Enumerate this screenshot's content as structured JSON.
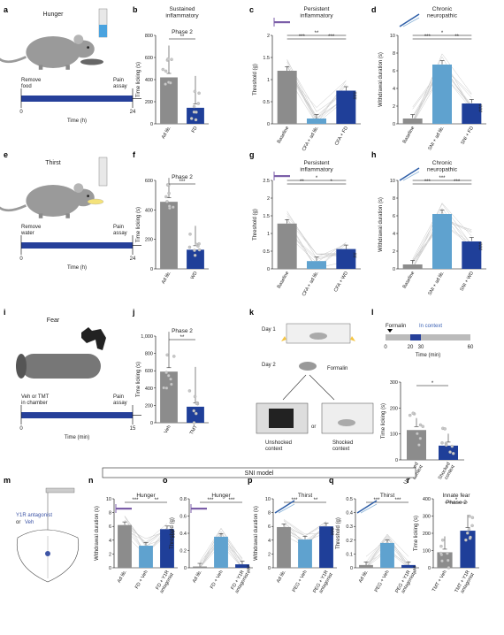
{
  "colors": {
    "grey": "#8c8c8c",
    "light_blue": "#5fa2cf",
    "dark_blue": "#1f3f99",
    "mid_blue": "#3b61b4",
    "line_grey": "#c8c8c8",
    "timeline": "#26409a",
    "veh_label": "#3e55a6"
  },
  "panel_letters": [
    "a",
    "b",
    "c",
    "d",
    "e",
    "f",
    "g",
    "h",
    "i",
    "j",
    "k",
    "l",
    "m",
    "n",
    "o",
    "p",
    "q",
    "r"
  ],
  "schematics": {
    "a": {
      "title": "Hunger",
      "left": "Remove\nfood",
      "right": "Pain\nassay",
      "t0": "0",
      "t1": "24",
      "axis": "Time (h)"
    },
    "e": {
      "title": "Thirst",
      "left": "Remove\nwater",
      "right": "Pain\nassay",
      "t0": "0",
      "t1": "24",
      "axis": "Time (h)"
    },
    "i": {
      "title": "Fear",
      "left": "Veh or TMT\nin chamber",
      "right": "Pain\nassay",
      "t0": "0",
      "t1": "15",
      "axis": "Time (min)"
    },
    "k": {
      "day1": "Day 1",
      "day2": "Day 2",
      "formalin": "Formalin",
      "unshocked": "Unshocked\ncontext",
      "or": "or",
      "shocked": "Shocked\ncontext"
    },
    "l_timeline": {
      "formalin": "Formalin",
      "in_context": "In context",
      "ticks": [
        "0",
        "20",
        "30",
        "60"
      ],
      "axis": "Time (min)"
    },
    "m": {
      "label1": "Y1R antagonist",
      "label2": "or",
      "label3": "Veh"
    }
  },
  "sni_model_label": "SNI model",
  "chart_data": [
    {
      "panel": "b",
      "type": "bar",
      "title": "Sustained\ninflammatory",
      "subtitle": "Phase 2",
      "categories": [
        "Ad lib.",
        "FD"
      ],
      "values": [
        420,
        145
      ],
      "ylabel": "Time licking (s)",
      "ylim": [
        0,
        800
      ],
      "yticks": [
        0,
        200,
        400,
        600,
        800
      ],
      "sig": [
        {
          "a": 0,
          "b": 1,
          "label": "**"
        }
      ],
      "colors": [
        "grey",
        "dark_blue"
      ]
    },
    {
      "panel": "c",
      "type": "bar",
      "title": "Persistent\ninflammatory",
      "categories": [
        "Baseline",
        "CFA + ad lib.",
        "CFA + FD"
      ],
      "values": [
        1.2,
        0.12,
        0.75
      ],
      "ylabel": "Threshold (g)",
      "ylim": [
        0,
        2.0
      ],
      "yticks": [
        0,
        0.5,
        1.0,
        1.5,
        2.0
      ],
      "sig": [
        {
          "a": 0,
          "b": 1,
          "label": "***"
        },
        {
          "a": 1,
          "b": 2,
          "label": "***"
        },
        {
          "a": 0,
          "b": 2,
          "label": "**"
        }
      ],
      "end_label": "###",
      "colors": [
        "grey",
        "light_blue",
        "dark_blue"
      ]
    },
    {
      "panel": "d",
      "type": "bar",
      "title": "Chronic\nneuropathic",
      "categories": [
        "Baseline",
        "SNI + ad lib.",
        "SNI + FD"
      ],
      "values": [
        0.6,
        6.7,
        2.3
      ],
      "ylabel": "Withdrawal duration (s)",
      "ylim": [
        0,
        10
      ],
      "yticks": [
        0,
        2,
        4,
        6,
        8,
        10
      ],
      "sig": [
        {
          "a": 0,
          "b": 1,
          "label": "***"
        },
        {
          "a": 1,
          "b": 2,
          "label": "**"
        },
        {
          "a": 0,
          "b": 2,
          "label": "*"
        }
      ],
      "end_label": "###",
      "colors": [
        "grey",
        "light_blue",
        "dark_blue"
      ]
    },
    {
      "panel": "f",
      "type": "bar",
      "subtitle": "Phase 2",
      "categories": [
        "Ad lib.",
        "WD"
      ],
      "values": [
        455,
        130
      ],
      "ylabel": "Time licking (s)",
      "ylim": [
        0,
        600
      ],
      "yticks": [
        0,
        200,
        400,
        600
      ],
      "sig": [
        {
          "a": 0,
          "b": 1,
          "label": "***"
        }
      ],
      "colors": [
        "grey",
        "dark_blue"
      ]
    },
    {
      "panel": "g",
      "type": "bar",
      "title": "Persistent\ninflammatory",
      "categories": [
        "Baseline",
        "CFA + ad lib.",
        "CFA + WD"
      ],
      "values": [
        1.28,
        0.22,
        0.56
      ],
      "ylabel": "Threshold (g)",
      "ylim": [
        0,
        2.5
      ],
      "yticks": [
        0,
        0.5,
        1.0,
        1.5,
        2.0,
        2.5
      ],
      "sig": [
        {
          "a": 0,
          "b": 1,
          "label": "**"
        },
        {
          "a": 1,
          "b": 2,
          "label": "*"
        },
        {
          "a": 0,
          "b": 2,
          "label": "*"
        }
      ],
      "end_label": "##",
      "colors": [
        "grey",
        "light_blue",
        "dark_blue"
      ]
    },
    {
      "panel": "h",
      "type": "bar",
      "title": "Chronic\nneuropathic",
      "categories": [
        "Baseline",
        "SNI + ad lib.",
        "SNI + WD"
      ],
      "values": [
        0.5,
        6.2,
        3.1
      ],
      "ylabel": "Withdrawal duration (s)",
      "ylim": [
        0,
        10
      ],
      "yticks": [
        0,
        2,
        4,
        6,
        8,
        10
      ],
      "sig": [
        {
          "a": 0,
          "b": 1,
          "label": "***"
        },
        {
          "a": 1,
          "b": 2,
          "label": "***"
        },
        {
          "a": 0,
          "b": 2,
          "label": "***"
        }
      ],
      "end_label": "###",
      "colors": [
        "grey",
        "light_blue",
        "dark_blue"
      ]
    },
    {
      "panel": "j",
      "type": "bar",
      "subtitle": "Phase 2",
      "categories": [
        "Veh",
        "TMT"
      ],
      "values": [
        590,
        185
      ],
      "ylabel": "Time licking (s)",
      "ylim": [
        0,
        1000
      ],
      "yticks": [
        0,
        200,
        400,
        600,
        800,
        1000
      ],
      "ytick_labels": [
        "0",
        "200",
        "400",
        "600",
        "800",
        "1,000"
      ],
      "sig": [
        {
          "a": 0,
          "b": 1,
          "label": "**"
        }
      ],
      "colors": [
        "grey",
        "dark_blue"
      ]
    },
    {
      "panel": "l",
      "type": "bar",
      "categories": [
        "Unshocked\ncontext",
        "Shocked\ncontext"
      ],
      "values": [
        115,
        55
      ],
      "ylabel": "Time licking (s)",
      "ylim": [
        0,
        300
      ],
      "yticks": [
        0,
        100,
        200,
        300
      ],
      "sig": [
        {
          "a": 0,
          "b": 1,
          "label": "*"
        }
      ],
      "colors": [
        "grey",
        "dark_blue"
      ]
    },
    {
      "panel": "n",
      "type": "bar",
      "title": "Hunger",
      "categories": [
        "Ad lib.",
        "FD + Veh",
        "FD + Y1R\nantagonist"
      ],
      "values": [
        6.2,
        3.2,
        5.6
      ],
      "ylabel": "Withdrawal duration (s)",
      "ylim": [
        0,
        10
      ],
      "yticks": [
        0,
        2,
        4,
        6,
        8,
        10
      ],
      "sig": [
        {
          "a": 0,
          "b": 1,
          "label": "***"
        },
        {
          "a": 1,
          "b": 2,
          "label": "**"
        }
      ],
      "end_label": "###",
      "colors": [
        "grey",
        "light_blue",
        "dark_blue"
      ]
    },
    {
      "panel": "o",
      "type": "bar",
      "title": "Hunger",
      "categories": [
        "Ad lib.",
        "FD + Veh",
        "FD + Y1R\nantagonist"
      ],
      "values": [
        0.015,
        0.36,
        0.04
      ],
      "ylabel": "Threshold (g)",
      "ylim": [
        0,
        0.8
      ],
      "yticks": [
        0,
        0.2,
        0.4,
        0.6,
        0.8
      ],
      "sig": [
        {
          "a": 0,
          "b": 1,
          "label": "***"
        },
        {
          "a": 1,
          "b": 2,
          "label": "***"
        }
      ],
      "end_label": "###",
      "colors": [
        "grey",
        "light_blue",
        "dark_blue"
      ]
    },
    {
      "panel": "p",
      "type": "bar",
      "title": "Thirst",
      "categories": [
        "Ad lib.",
        "PEG + Veh",
        "PEG + Y1R\nantagonist"
      ],
      "values": [
        5.9,
        4.1,
        6.0
      ],
      "ylabel": "Withdrawal duration (s)",
      "ylim": [
        0,
        10
      ],
      "yticks": [
        0,
        2,
        4,
        6,
        8,
        10
      ],
      "sig": [
        {
          "a": 0,
          "b": 1,
          "label": "***"
        },
        {
          "a": 1,
          "b": 2,
          "label": "**"
        }
      ],
      "end_label": "###",
      "colors": [
        "grey",
        "light_blue",
        "dark_blue"
      ]
    },
    {
      "panel": "q",
      "type": "bar",
      "title": "Thirst",
      "categories": [
        "Ad lib.",
        "PEG + Veh",
        "PEG + Y1R\nantagonist"
      ],
      "values": [
        0.02,
        0.18,
        0.02
      ],
      "ylabel": "Threshold (g)",
      "ylim": [
        0,
        0.5
      ],
      "yticks": [
        0,
        0.1,
        0.2,
        0.3,
        0.4,
        0.5
      ],
      "sig": [
        {
          "a": 0,
          "b": 1,
          "label": "***"
        },
        {
          "a": 1,
          "b": 2,
          "label": "***"
        }
      ],
      "end_label": "###",
      "colors": [
        "grey",
        "light_blue",
        "dark_blue"
      ]
    },
    {
      "panel": "r",
      "type": "bar",
      "title": "Innate fear",
      "subtitle": "Phase 2",
      "categories": [
        "TMT + Veh",
        "TMT + Y1R\nantagonist"
      ],
      "values": [
        90,
        215
      ],
      "ylabel": "Time licking (s)",
      "ylim": [
        0,
        400
      ],
      "yticks": [
        0,
        100,
        200,
        300,
        400
      ],
      "sig": [
        {
          "a": 0,
          "b": 1,
          "label": "*"
        }
      ],
      "colors": [
        "grey",
        "dark_blue"
      ]
    }
  ]
}
